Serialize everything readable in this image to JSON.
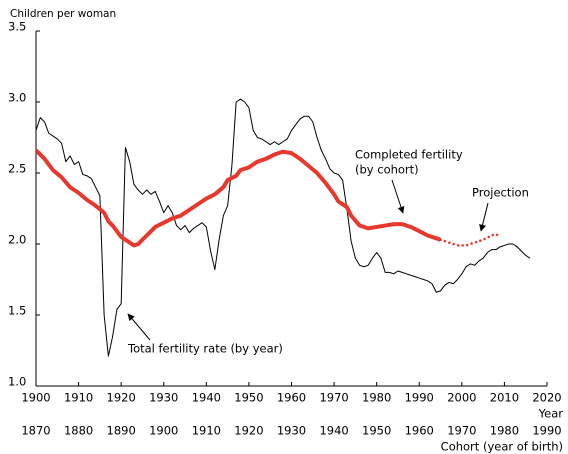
{
  "chart_data": {
    "type": "line",
    "y_label": "Children per woman",
    "x_label": "Year",
    "x2_label": "Cohort (year of birth)",
    "xlim": [
      1900,
      2020
    ],
    "xticks": [
      1900,
      1910,
      1920,
      1930,
      1940,
      1950,
      1960,
      1970,
      1980,
      1990,
      2000,
      2010,
      2020
    ],
    "x2lim": [
      1870,
      1990
    ],
    "x2ticks": [
      1870,
      1880,
      1890,
      1900,
      1910,
      1920,
      1930,
      1940,
      1950,
      1960,
      1970,
      1980,
      1990
    ],
    "ylim": [
      1,
      3.5
    ],
    "yticks": [
      {
        "value": 1,
        "label": "1.0"
      },
      1.5,
      {
        "value": 2,
        "label": "2.0"
      },
      2.5,
      {
        "value": 3,
        "label": "3.0"
      },
      3.5
    ],
    "grid": false,
    "series": [
      {
        "name": [
          "Total fertility rate (by year)"
        ],
        "color": "#000000",
        "style": "solid",
        "width": 1,
        "axis": "x",
        "x": [
          1900,
          1901,
          1902,
          1903,
          1904,
          1905,
          1906,
          1907,
          1908,
          1909,
          1910,
          1911,
          1912,
          1913,
          1914,
          1915,
          1916,
          1917,
          1918,
          1919,
          1920,
          1921,
          1922,
          1923,
          1924,
          1925,
          1926,
          1927,
          1928,
          1929,
          1930,
          1931,
          1932,
          1933,
          1934,
          1935,
          1936,
          1937,
          1938,
          1939,
          1940,
          1941,
          1942,
          1943,
          1944,
          1945,
          1946,
          1947,
          1948,
          1949,
          1950,
          1951,
          1952,
          1953,
          1954,
          1955,
          1956,
          1957,
          1958,
          1959,
          1960,
          1961,
          1962,
          1963,
          1964,
          1965,
          1966,
          1967,
          1968,
          1969,
          1970,
          1971,
          1972,
          1973,
          1974,
          1975,
          1976,
          1977,
          1978,
          1979,
          1980,
          1981,
          1982,
          1983,
          1984,
          1985,
          1986,
          1987,
          1988,
          1989,
          1990,
          1991,
          1992,
          1993,
          1994,
          1995,
          1996,
          1997,
          1998,
          1999,
          2000,
          2001,
          2002,
          2003,
          2004,
          2005,
          2006,
          2007,
          2008,
          2009,
          2010,
          2011,
          2012,
          2013,
          2014,
          2015,
          2016
        ],
        "values": [
          2.8,
          2.89,
          2.86,
          2.78,
          2.76,
          2.74,
          2.71,
          2.58,
          2.62,
          2.56,
          2.58,
          2.49,
          2.48,
          2.46,
          2.4,
          2.34,
          1.5,
          1.21,
          1.35,
          1.54,
          1.58,
          2.68,
          2.58,
          2.42,
          2.38,
          2.35,
          2.38,
          2.35,
          2.37,
          2.3,
          2.22,
          2.27,
          2.22,
          2.13,
          2.1,
          2.13,
          2.08,
          2.11,
          2.13,
          2.15,
          2.12,
          1.95,
          1.82,
          2.03,
          2.2,
          2.27,
          2.55,
          3.0,
          3.02,
          3.0,
          2.96,
          2.8,
          2.75,
          2.74,
          2.72,
          2.7,
          2.72,
          2.7,
          2.72,
          2.74,
          2.8,
          2.84,
          2.88,
          2.9,
          2.9,
          2.86,
          2.75,
          2.66,
          2.6,
          2.53,
          2.5,
          2.49,
          2.45,
          2.25,
          2.02,
          1.9,
          1.85,
          1.84,
          1.85,
          1.9,
          1.94,
          1.9,
          1.8,
          1.8,
          1.79,
          1.81,
          1.8,
          1.79,
          1.78,
          1.77,
          1.76,
          1.75,
          1.74,
          1.72,
          1.66,
          1.67,
          1.71,
          1.73,
          1.72,
          1.75,
          1.79,
          1.84,
          1.86,
          1.85,
          1.88,
          1.9,
          1.94,
          1.96,
          1.96,
          1.98,
          1.99,
          2.0,
          2.0,
          1.98,
          1.95,
          1.92,
          1.9
        ]
      },
      {
        "name": [
          "Completed fertility",
          "(by cohort)"
        ],
        "color": "#e8382e",
        "style": "solid",
        "width": 4,
        "axis": "x2",
        "x": [
          1870,
          1872,
          1874,
          1876,
          1878,
          1880,
          1882,
          1884,
          1886,
          1887,
          1888,
          1890,
          1891,
          1892,
          1893,
          1894,
          1896,
          1898,
          1900,
          1902,
          1904,
          1906,
          1908,
          1910,
          1912,
          1914,
          1915,
          1917,
          1918,
          1920,
          1922,
          1924,
          1926,
          1928,
          1930,
          1932,
          1934,
          1936,
          1938,
          1940,
          1941,
          1943,
          1944,
          1946,
          1948,
          1950,
          1952,
          1954,
          1956,
          1958,
          1960,
          1962,
          1964,
          1965
        ],
        "values": [
          2.66,
          2.6,
          2.52,
          2.47,
          2.4,
          2.36,
          2.31,
          2.27,
          2.22,
          2.16,
          2.13,
          2.05,
          2.03,
          2.01,
          1.99,
          2.0,
          2.06,
          2.12,
          2.15,
          2.18,
          2.2,
          2.24,
          2.28,
          2.32,
          2.35,
          2.4,
          2.45,
          2.48,
          2.52,
          2.54,
          2.58,
          2.6,
          2.63,
          2.65,
          2.64,
          2.6,
          2.55,
          2.5,
          2.43,
          2.35,
          2.3,
          2.26,
          2.2,
          2.13,
          2.11,
          2.12,
          2.13,
          2.14,
          2.14,
          2.12,
          2.09,
          2.06,
          2.04,
          2.03
        ]
      },
      {
        "name": [
          "Projection"
        ],
        "color": "#e8382e",
        "style": "dotted",
        "width": 2.5,
        "axis": "x2",
        "x": [
          1965,
          1967,
          1969,
          1971,
          1973,
          1975,
          1977,
          1978,
          1979
        ],
        "values": [
          2.03,
          2.01,
          1.99,
          1.99,
          2.01,
          2.03,
          2.06,
          2.07,
          2.05
        ]
      }
    ]
  }
}
